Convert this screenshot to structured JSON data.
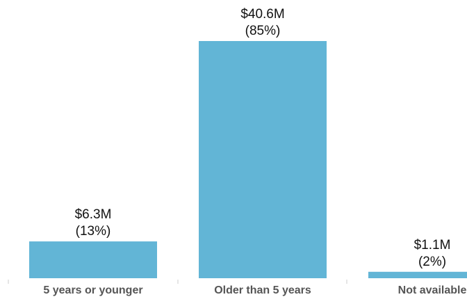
{
  "chart_data": {
    "type": "bar",
    "categories": [
      "5 years or younger",
      "Older than 5 years",
      "Not available"
    ],
    "values": [
      6.3,
      40.6,
      1.1
    ],
    "value_labels": [
      "$6.3M",
      "$40.6M",
      "$1.1M"
    ],
    "percent_labels": [
      "(13%)",
      "(85%)",
      "(2%)"
    ],
    "title": "",
    "xlabel": "",
    "ylabel": "",
    "ylim": [
      0,
      40.6
    ],
    "grid": false,
    "bar_color": "#62B5D6",
    "axis_color": "#CCCCCC"
  }
}
